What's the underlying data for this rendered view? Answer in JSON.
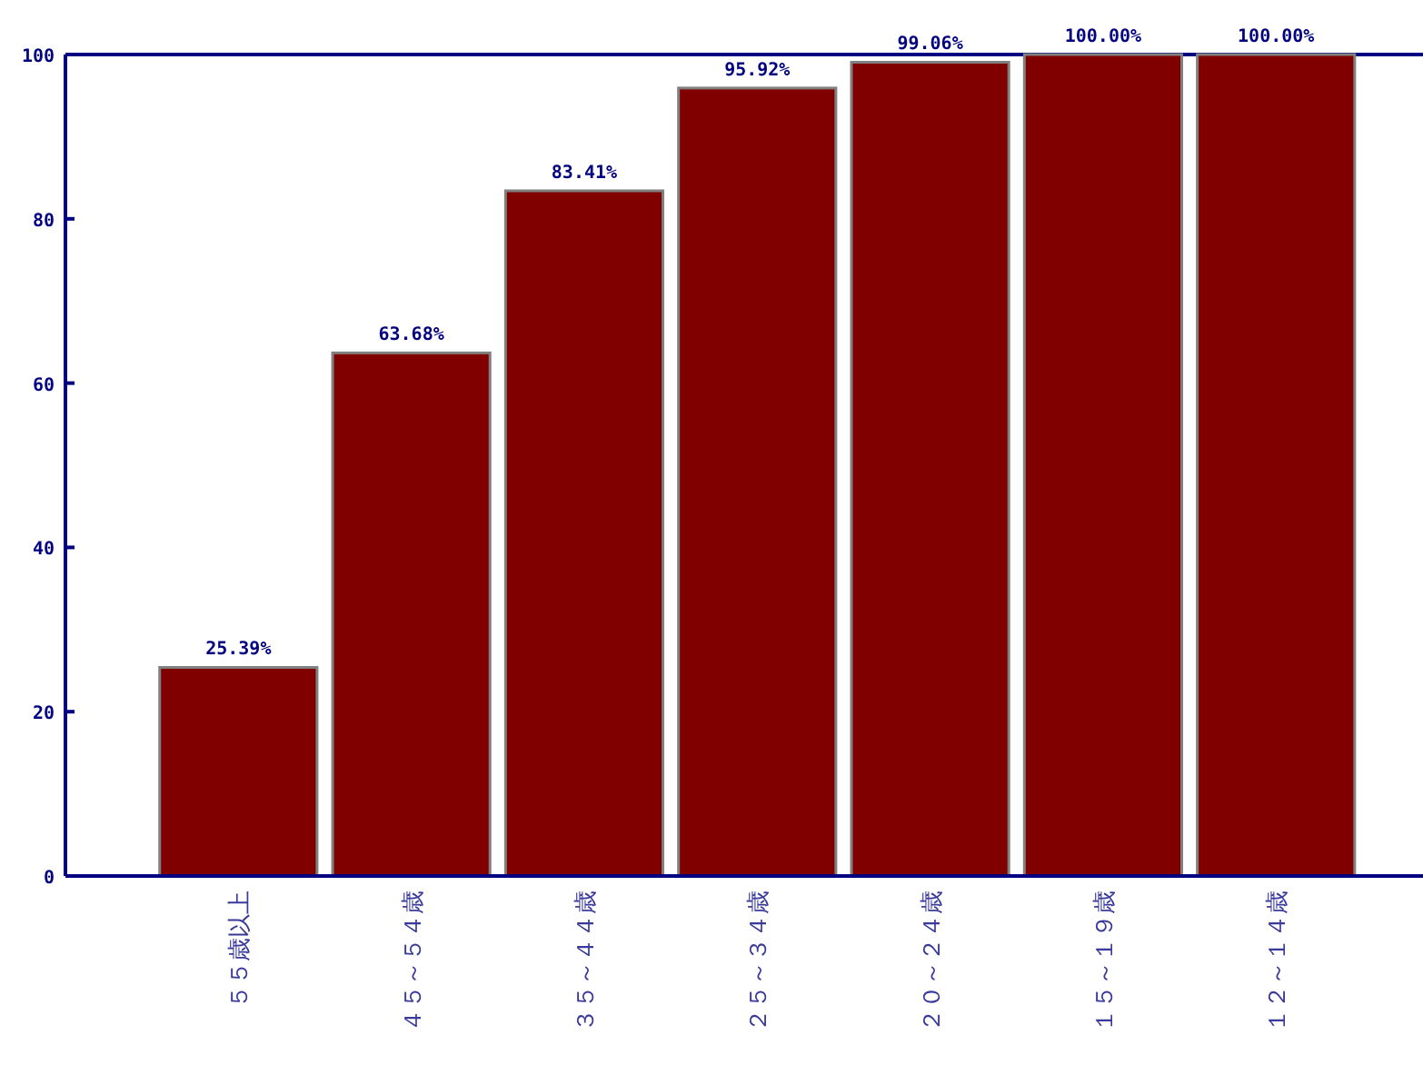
{
  "chart_data": {
    "type": "bar",
    "categories": [
      "５５歳以上",
      "４５～５４歳",
      "３５～４４歳",
      "２５～３４歳",
      "２０～２４歳",
      "１５～１９歳",
      "１２～１４歳"
    ],
    "values": [
      25.39,
      63.68,
      83.41,
      95.92,
      99.06,
      100,
      100
    ],
    "value_labels": [
      "25.39%",
      "63.68%",
      "83.41%",
      "95.92%",
      "99.06%",
      "100.00%",
      "100.00%"
    ],
    "color": "#800000",
    "ylim": [
      0,
      100
    ],
    "yticks": [
      0,
      20,
      40,
      60,
      80,
      100
    ],
    "grid": false
  }
}
